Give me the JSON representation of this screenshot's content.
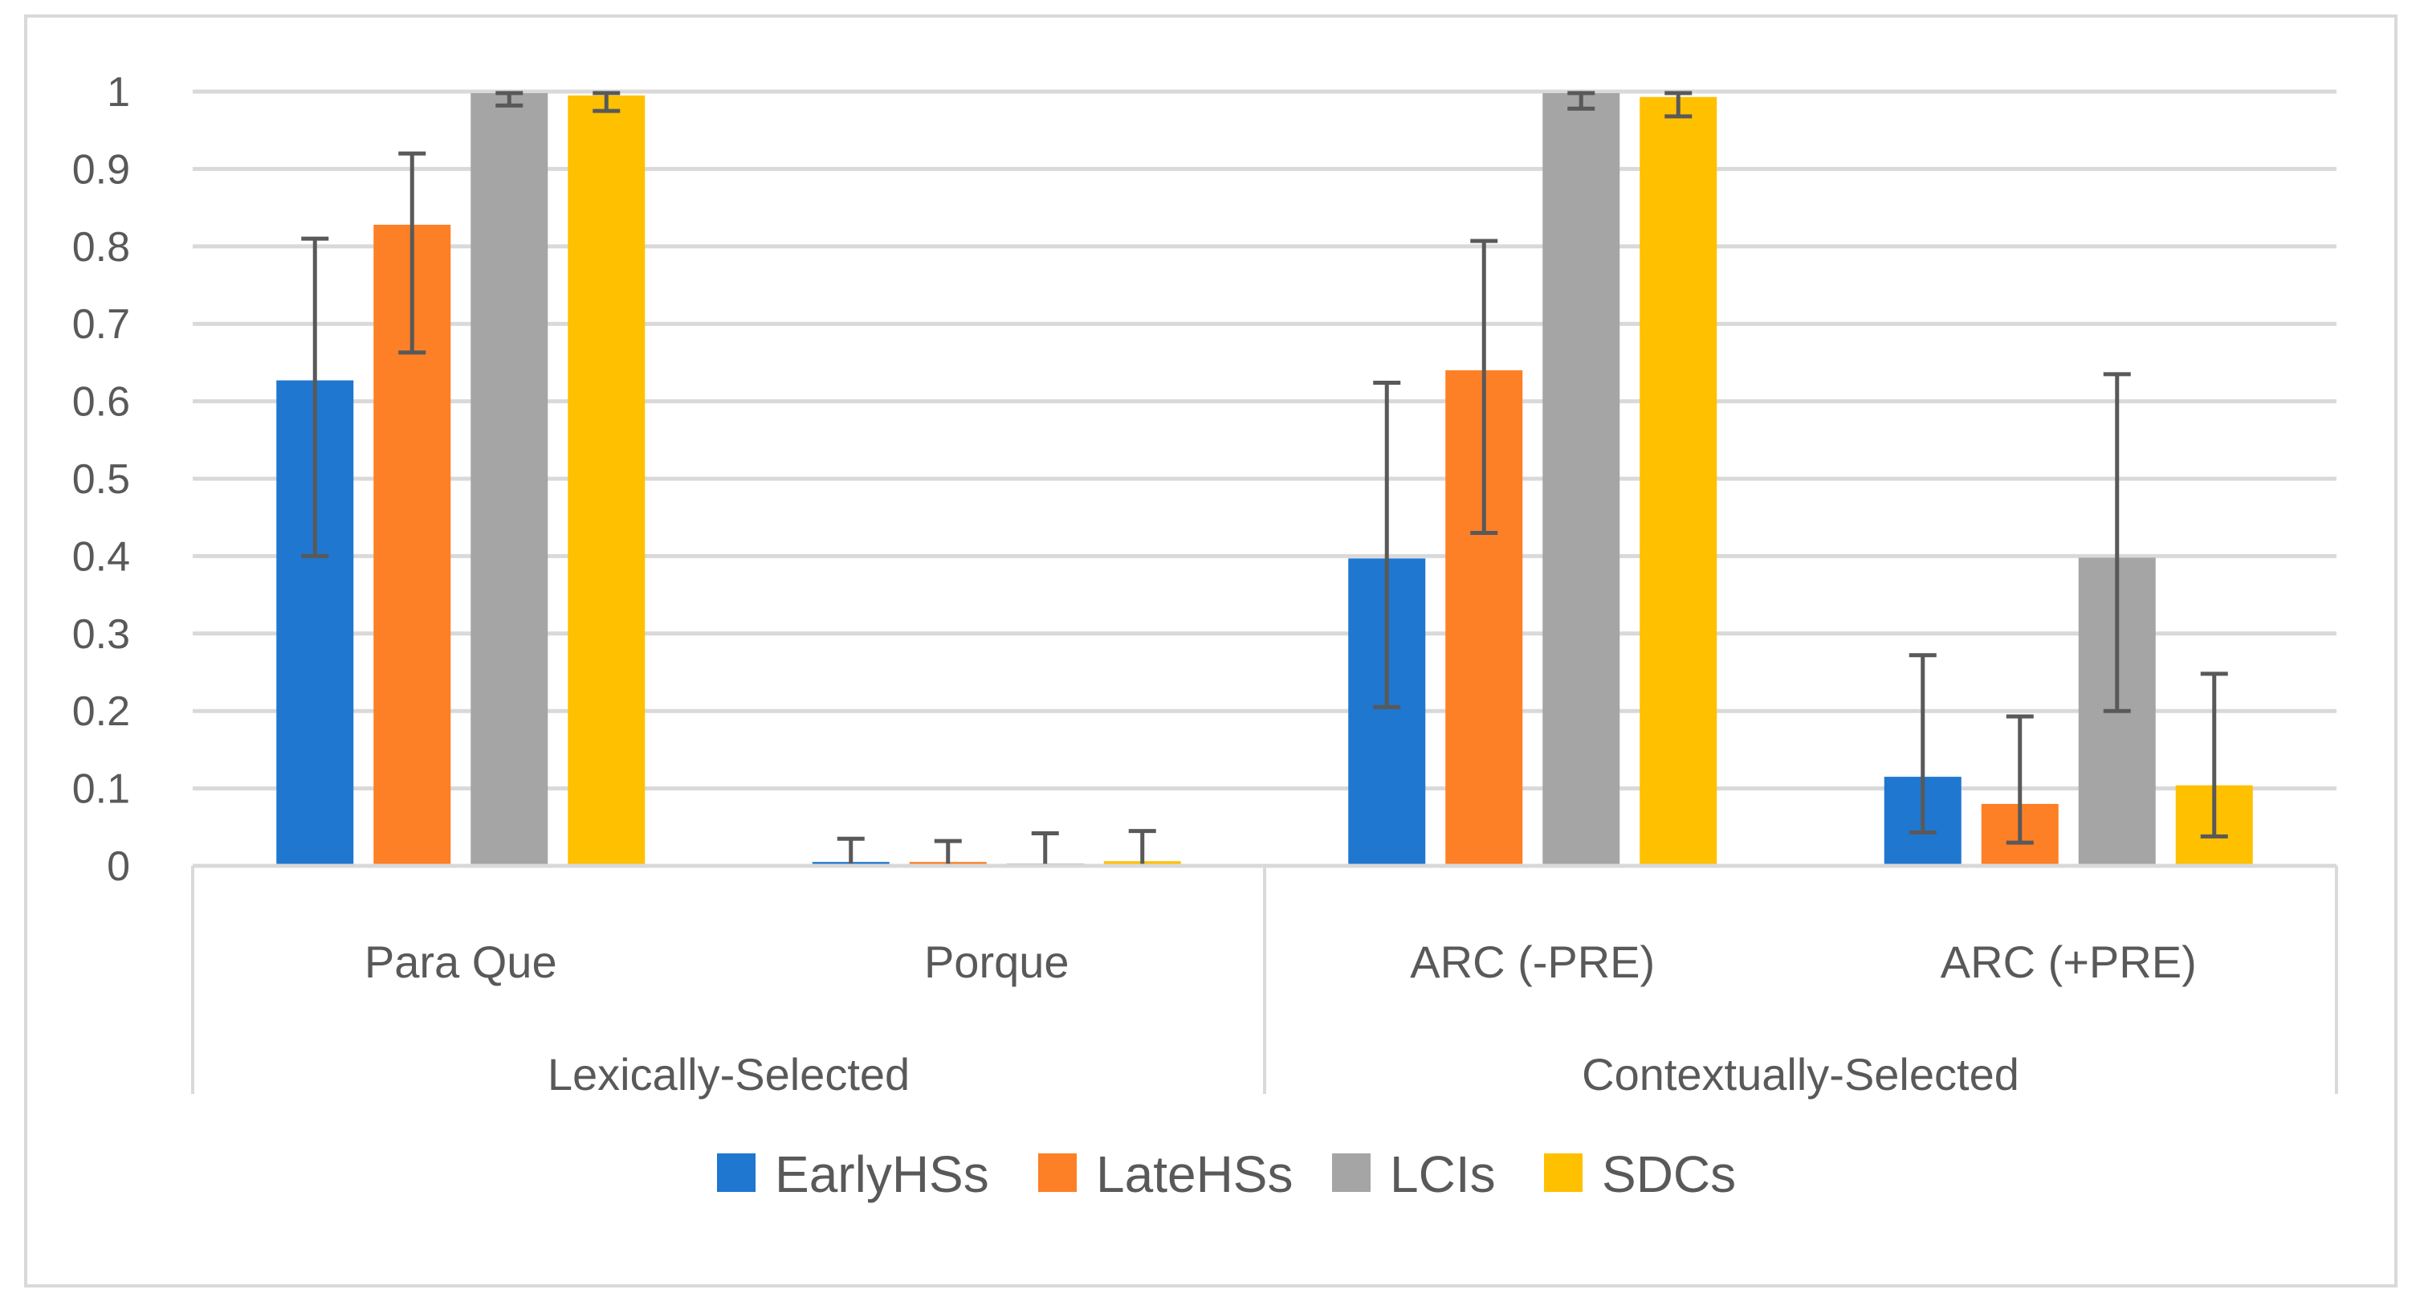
{
  "chart_data": {
    "type": "bar",
    "title": "",
    "xlabel": "",
    "ylabel": "",
    "ylim": [
      0,
      1
    ],
    "yticks": [
      "0",
      "0.1",
      "0.2",
      "0.3",
      "0.4",
      "0.5",
      "0.6",
      "0.7",
      "0.8",
      "0.9",
      "1"
    ],
    "grid": true,
    "legend_position": "bottom",
    "groups": [
      {
        "label": "Lexically-Selected",
        "categories": [
          "Para Que",
          "Porque"
        ]
      },
      {
        "label": "Contextually-Selected",
        "categories": [
          "ARC (-PRE)",
          "ARC (+PRE)"
        ]
      }
    ],
    "categories": [
      "Para Que",
      "Porque",
      "ARC (-PRE)",
      "ARC (+PRE)"
    ],
    "series": [
      {
        "name": "EarlyHSs",
        "color": "#1f77d0",
        "values": [
          0.627,
          0.005,
          0.397,
          0.115
        ],
        "err_low": [
          0.4,
          0.0,
          0.205,
          0.043
        ],
        "err_high": [
          0.81,
          0.035,
          0.624,
          0.272
        ]
      },
      {
        "name": "LateHSs",
        "color": "#fd7f26",
        "values": [
          0.828,
          0.005,
          0.64,
          0.08
        ],
        "err_low": [
          0.663,
          0.0,
          0.43,
          0.03
        ],
        "err_high": [
          0.92,
          0.032,
          0.807,
          0.193
        ]
      },
      {
        "name": "LCIs",
        "color": "#a5a5a5",
        "values": [
          0.998,
          0.003,
          0.998,
          0.398
        ],
        "err_low": [
          0.982,
          0.0,
          0.978,
          0.2
        ],
        "err_high": [
          0.998,
          0.042,
          0.998,
          0.635
        ]
      },
      {
        "name": "SDCs",
        "color": "#ffc000",
        "values": [
          0.995,
          0.006,
          0.993,
          0.104
        ],
        "err_low": [
          0.975,
          0.0,
          0.968,
          0.038
        ],
        "err_high": [
          0.998,
          0.045,
          0.998,
          0.248
        ]
      }
    ]
  }
}
